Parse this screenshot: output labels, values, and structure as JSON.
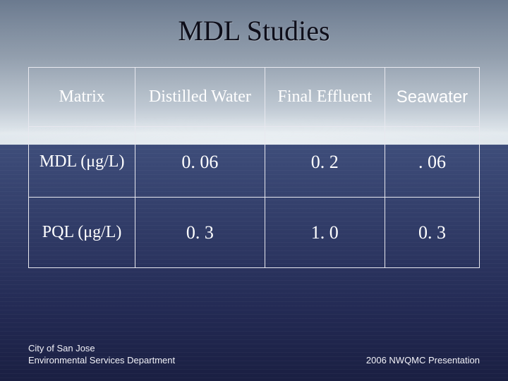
{
  "title": "MDL Studies",
  "table": {
    "columns": [
      "Matrix",
      "Distilled Water",
      "Final Effluent",
      "Seawater"
    ],
    "rows": [
      {
        "label": "MDL (μg/L)",
        "values": [
          "0. 06",
          "0. 2",
          ". 06"
        ]
      },
      {
        "label": "PQL (μg/L)",
        "values": [
          "0. 3",
          "1. 0",
          "0. 3"
        ]
      }
    ],
    "border_color": "#e8e8ef",
    "text_color": "#ffffff",
    "header_fontsize": 24,
    "cell_fontsize": 26,
    "font_family": "Georgia"
  },
  "footer": {
    "left_line1": "City of San Jose",
    "left_line2": "Environmental Services Department",
    "right": "2006 NWQMC Presentation"
  },
  "background": {
    "sky_colors": [
      "#6b7a8f",
      "#8b98a8",
      "#b5c0cc",
      "#dce4ea"
    ],
    "water_colors": [
      "#3e4d7a",
      "#2e3868",
      "#232a54",
      "#1a1f42"
    ]
  }
}
